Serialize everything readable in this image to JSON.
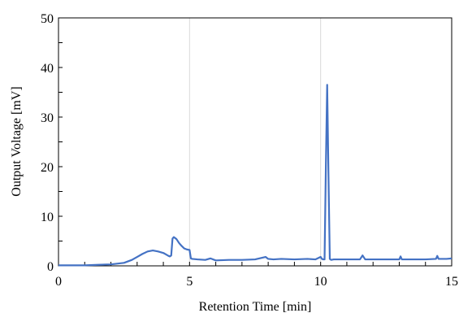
{
  "chart_data": {
    "type": "line",
    "xlabel": "Retention Time [min]",
    "ylabel": "Output Voltage [mV]",
    "xlim": [
      0,
      15
    ],
    "ylim": [
      0,
      50
    ],
    "x_ticks": [
      0,
      5,
      10,
      15
    ],
    "y_ticks": [
      0,
      10,
      20,
      30,
      40,
      50
    ],
    "x_tick_labels": [
      "0",
      "5",
      "10",
      "15"
    ],
    "y_tick_labels": [
      "0",
      "10",
      "20",
      "30",
      "40",
      "50"
    ],
    "grid": "vertical",
    "legend": "none",
    "series": [
      {
        "color": "#4472c4",
        "x": [
          0,
          0.5,
          1.0,
          1.5,
          2.0,
          2.5,
          2.8,
          3.0,
          3.2,
          3.4,
          3.6,
          3.8,
          4.0,
          4.1,
          4.2,
          4.25,
          4.3,
          4.35,
          4.4,
          4.5,
          4.6,
          4.7,
          4.8,
          4.9,
          5.0,
          5.05,
          5.1,
          5.3,
          5.6,
          5.8,
          6.0,
          6.5,
          7.0,
          7.5,
          7.9,
          8.0,
          8.2,
          8.5,
          9.0,
          9.5,
          9.8,
          10.0,
          10.05,
          10.1,
          10.15,
          10.2,
          10.25,
          10.3,
          10.35,
          10.4,
          10.5,
          11.0,
          11.5,
          11.6,
          11.7,
          12.0,
          12.5,
          13.0,
          13.05,
          13.1,
          13.5,
          14.0,
          14.4,
          14.45,
          14.5,
          14.8,
          15.0
        ],
        "y": [
          0.1,
          0.1,
          0.1,
          0.2,
          0.3,
          0.6,
          1.2,
          1.8,
          2.4,
          2.9,
          3.1,
          2.9,
          2.6,
          2.3,
          2.0,
          1.9,
          2.1,
          5.5,
          5.8,
          5.4,
          4.6,
          4.0,
          3.5,
          3.3,
          3.2,
          1.5,
          1.4,
          1.3,
          1.2,
          1.5,
          1.1,
          1.2,
          1.2,
          1.3,
          1.8,
          1.4,
          1.3,
          1.4,
          1.3,
          1.4,
          1.3,
          1.8,
          1.4,
          1.3,
          1.3,
          20.0,
          36.5,
          18.0,
          1.4,
          1.2,
          1.3,
          1.3,
          1.3,
          2.1,
          1.3,
          1.3,
          1.3,
          1.3,
          1.9,
          1.3,
          1.3,
          1.3,
          1.4,
          2.0,
          1.4,
          1.4,
          1.5
        ]
      }
    ]
  }
}
